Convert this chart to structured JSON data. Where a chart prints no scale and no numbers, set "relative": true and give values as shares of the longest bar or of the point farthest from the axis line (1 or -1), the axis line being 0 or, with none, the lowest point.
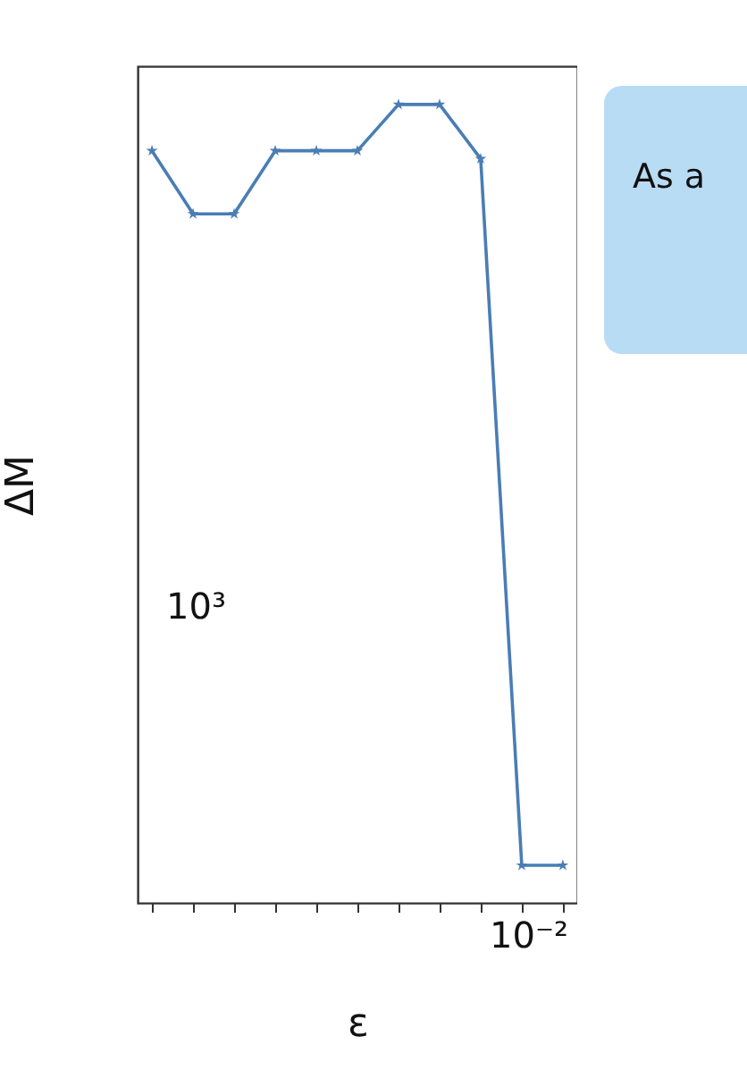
{
  "chart_data": {
    "type": "line",
    "xlabel": "ε",
    "ylabel": "ΔM",
    "relative": true,
    "marker": "star",
    "line_style": "solid",
    "grid": false,
    "legend": false,
    "categories": [
      null,
      null,
      null,
      null,
      null,
      null,
      null,
      null,
      null,
      null,
      null
    ],
    "series": [
      {
        "color": "#4a7db5",
        "values": [
          0.942,
          0.863,
          0.863,
          0.942,
          0.942,
          0.942,
          1,
          1,
          0.932,
          0.047,
          0.047
        ]
      }
    ],
    "annotations": [
      "As a",
      "10³",
      "10⁻²"
    ]
  }
}
